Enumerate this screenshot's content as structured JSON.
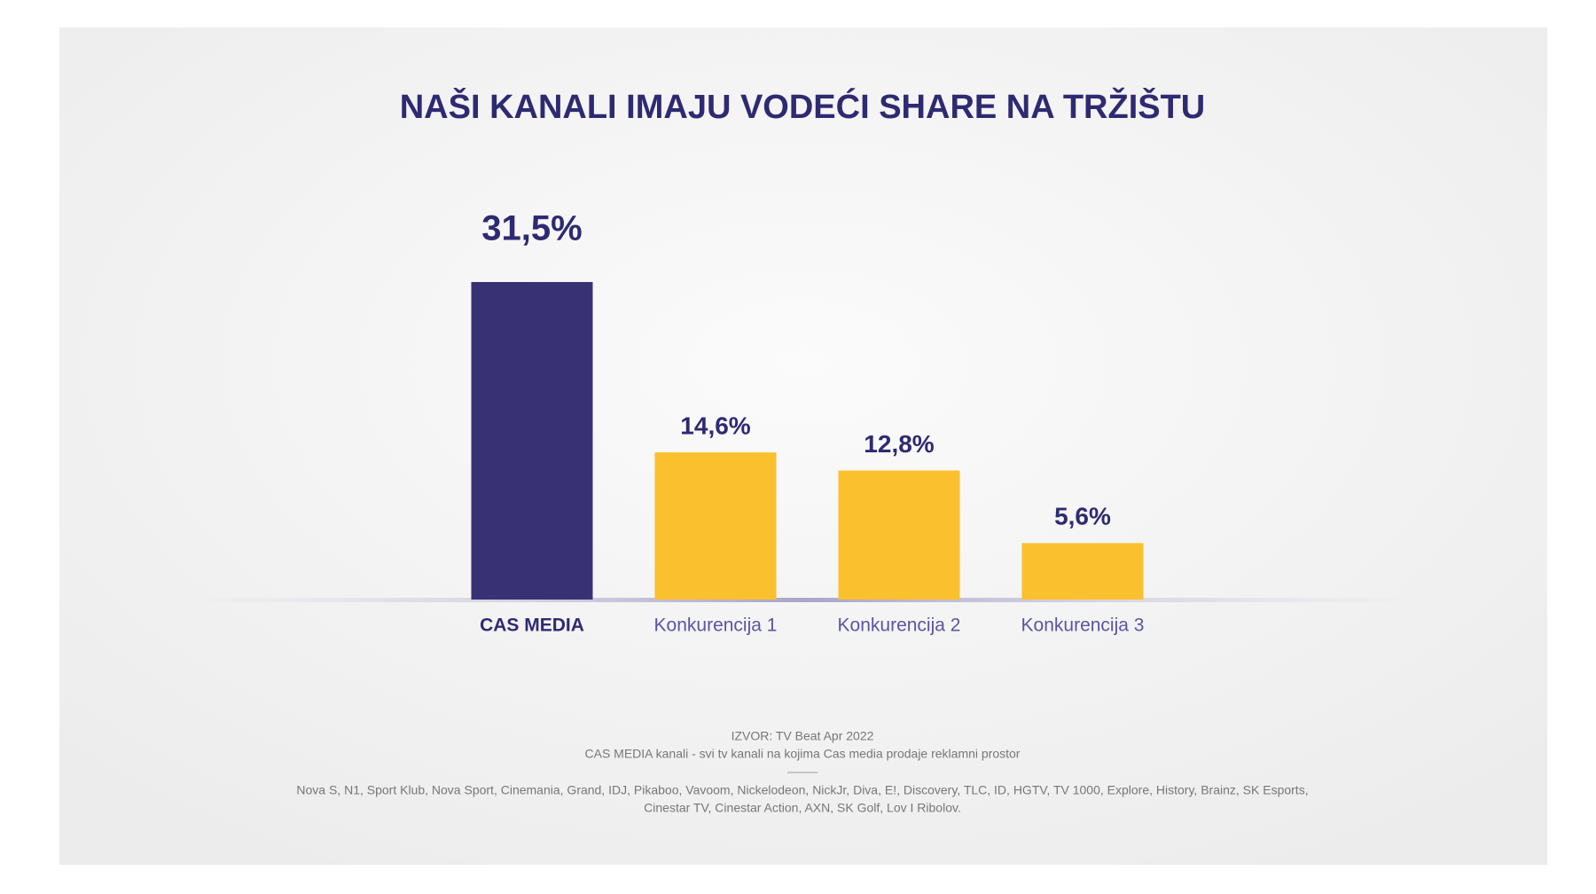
{
  "chart_data": {
    "type": "bar",
    "title": "NAŠI KANALI IMAJU VODEĆI SHARE NA TRŽIŠTU",
    "categories": [
      "CAS MEDIA",
      "Konkurencija 1",
      "Konkurencija 2",
      "Konkurencija 3"
    ],
    "values": [
      31.5,
      14.6,
      12.8,
      5.6
    ],
    "value_labels": [
      "31,5%",
      "14,6%",
      "12,8%",
      "5,6%"
    ],
    "colors": [
      "#383274",
      "#fbc02d",
      "#fbc02d",
      "#fbc02d"
    ],
    "source": "IZVOR: TV Beat Apr 2022",
    "note": "CAS MEDIA kanali - svi tv kanali na kojima Cas media prodaje reklamni prostor",
    "channels": [
      "Nova S, N1, Sport Klub, Nova Sport, Cinemania, Grand, IDJ, Pikaboo, Vavoom, Nickelodeon, NickJr, Diva, E!, Discovery,  TLC, ID, HGTV, TV 1000, Explore, History, Brainz, SK Esports,",
      "Cinestar TV, Cinestar Action, AXN, SK Golf, Lov I Ribolov."
    ]
  }
}
